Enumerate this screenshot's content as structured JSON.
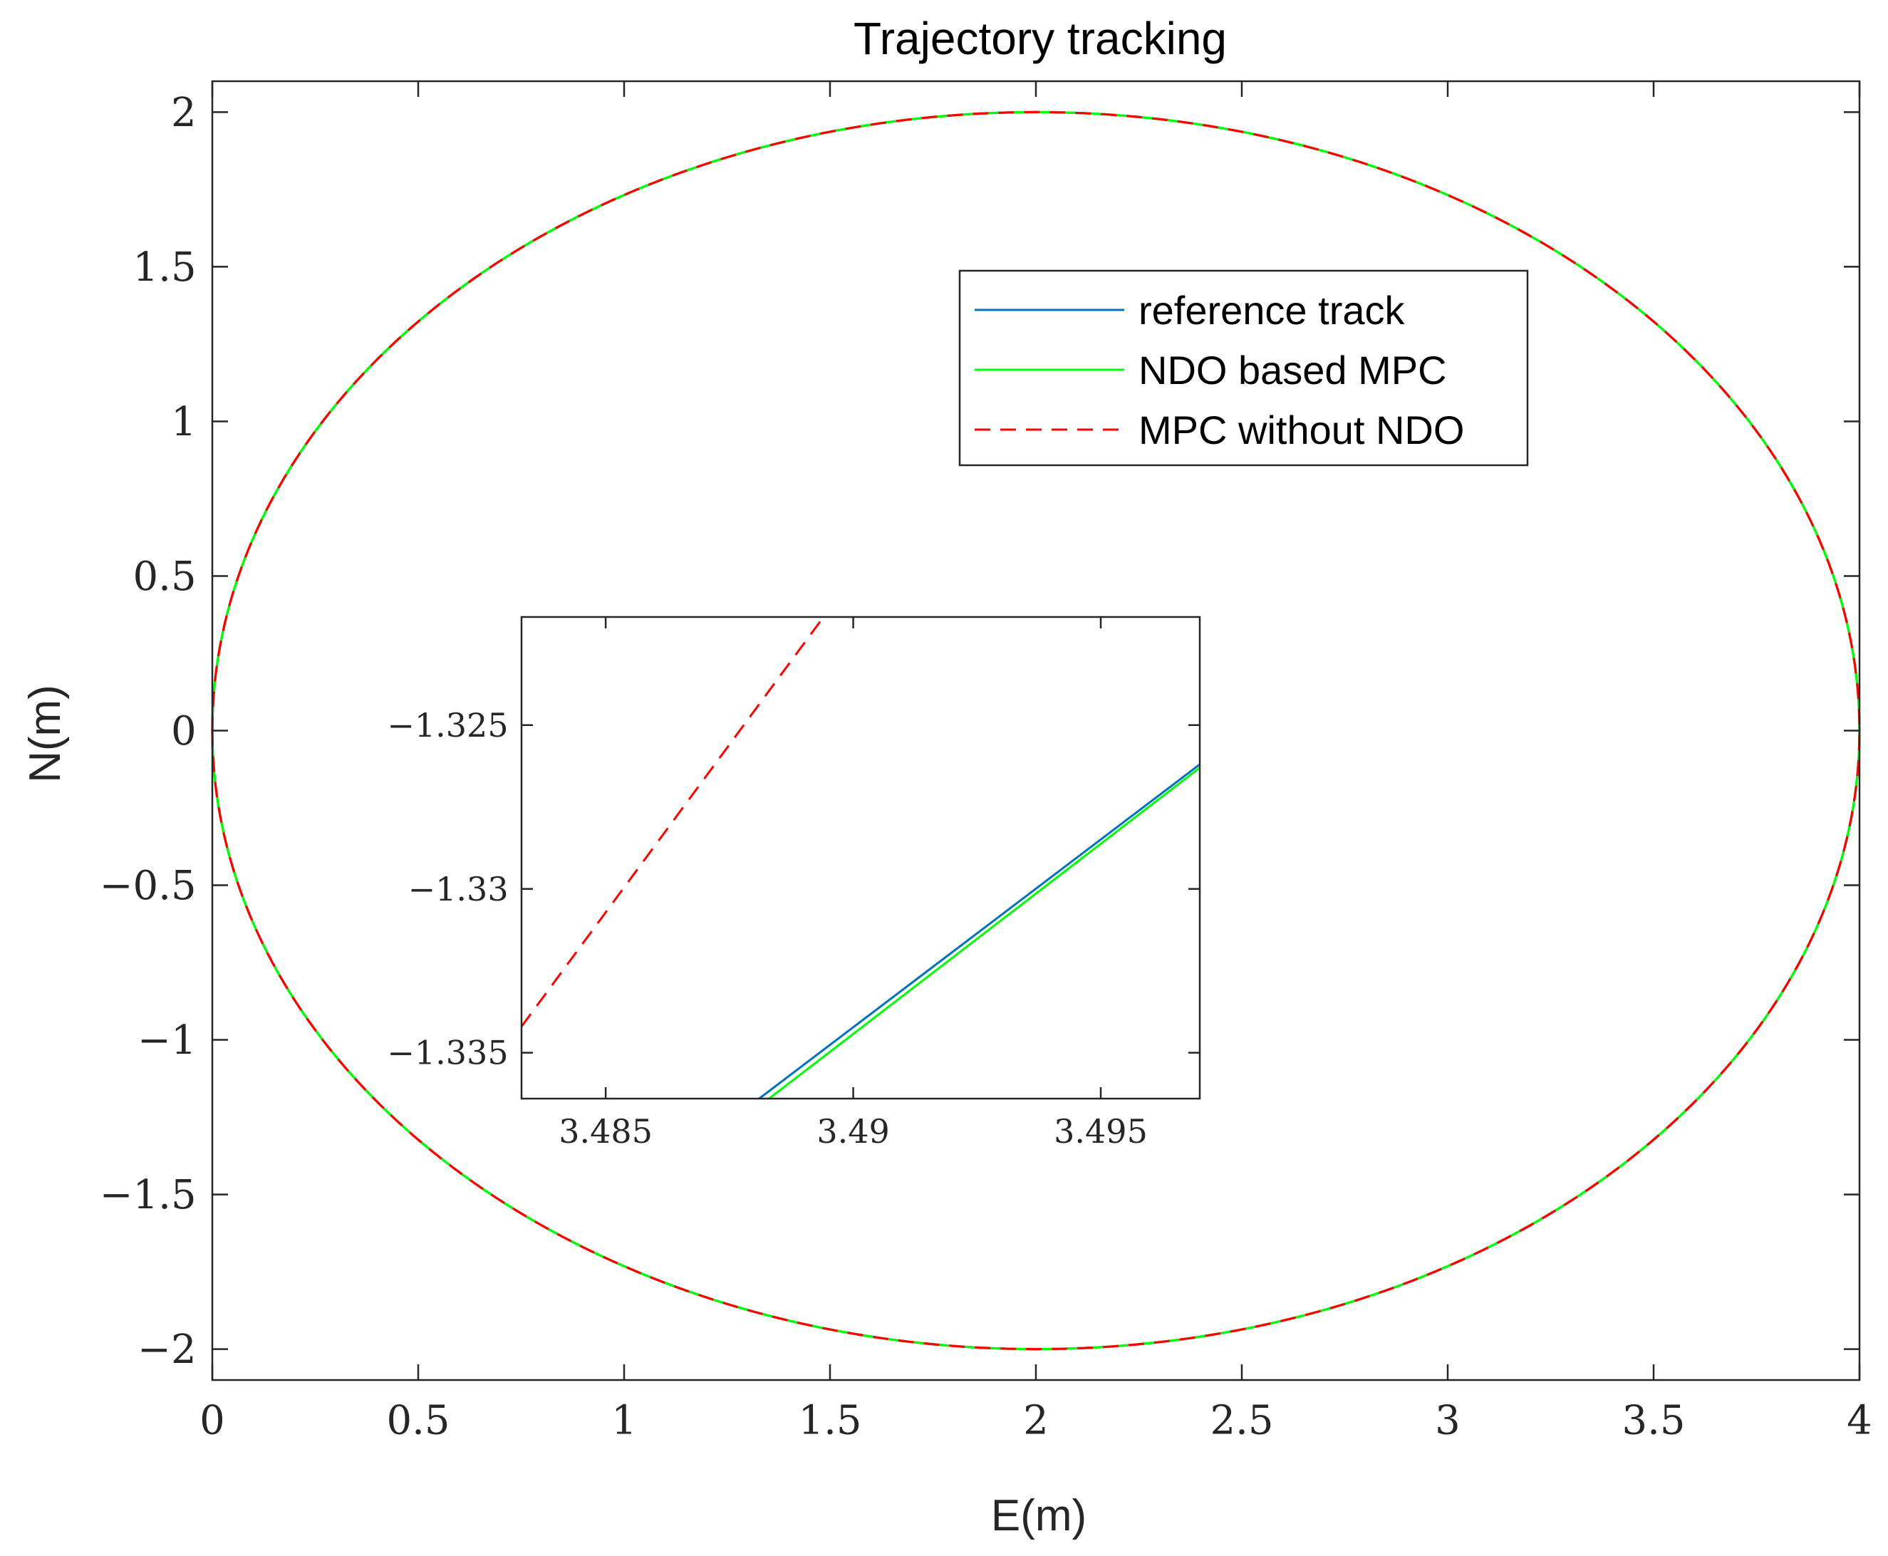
{
  "chart_data": [
    {
      "type": "line",
      "title": "Trajectory tracking",
      "xlabel": "E(m)",
      "ylabel": "N(m)",
      "xlim": [
        0,
        4
      ],
      "ylim": [
        -2.1,
        2.1
      ],
      "xticks": [
        0,
        0.5,
        1,
        1.5,
        2,
        2.5,
        3,
        3.5,
        4
      ],
      "xtick_labels": [
        "0",
        "0.5",
        "1",
        "1.5",
        "2",
        "2.5",
        "3",
        "3.5",
        "4"
      ],
      "yticks": [
        2,
        1.5,
        1,
        0.5,
        0,
        -0.5,
        -1,
        -1.5,
        -2
      ],
      "ytick_labels": [
        "2",
        "1.5",
        "1",
        "0.5",
        "0",
        "−0.5",
        "−1",
        "−1.5",
        "−2"
      ],
      "grid": false,
      "legend": {
        "position": "upper-right-inside",
        "entries": [
          "reference track",
          "NDO based MPC",
          "MPC without NDO"
        ]
      },
      "series": [
        {
          "name": "reference track",
          "color": "#0072bd",
          "style": "solid",
          "shape": "ellipse",
          "center": [
            2,
            0
          ],
          "semi_axes": [
            2,
            2
          ],
          "t_start_deg": 180
        },
        {
          "name": "NDO based MPC",
          "color": "#00ff00",
          "style": "solid",
          "shape": "ellipse",
          "center": [
            2,
            0
          ],
          "semi_axes": [
            2,
            2
          ],
          "t_start_deg": 180
        },
        {
          "name": "MPC without NDO",
          "color": "#ff0000",
          "style": "dashed",
          "shape": "ellipse",
          "center": [
            2,
            0
          ],
          "semi_axes": [
            2,
            2
          ],
          "t_start_deg": 180
        }
      ]
    },
    {
      "type": "line",
      "title": "",
      "xlim": [
        3.4833,
        3.497
      ],
      "ylim": [
        -1.3364,
        -1.3217
      ],
      "xticks": [
        3.485,
        3.49,
        3.495
      ],
      "xtick_labels": [
        "3.485",
        "3.49",
        "3.495"
      ],
      "yticks": [
        -1.325,
        -1.33,
        -1.335
      ],
      "ytick_labels": [
        "−1.325",
        "−1.33",
        "−1.335"
      ],
      "grid": false,
      "series": [
        {
          "name": "MPC without NDO",
          "color": "#ff0000",
          "style": "dashed",
          "points": [
            [
              3.4833,
              -1.3342
            ],
            [
              3.4894,
              -1.3217
            ]
          ]
        },
        {
          "name": "reference track",
          "color": "#0072bd",
          "style": "solid",
          "points": [
            [
              3.4881,
              -1.3364
            ],
            [
              3.497,
              -1.3262
            ]
          ]
        },
        {
          "name": "NDO based MPC",
          "color": "#00ff00",
          "style": "solid",
          "points": [
            [
              3.4883,
              -1.3364
            ],
            [
              3.497,
              -1.3263
            ]
          ]
        }
      ]
    }
  ]
}
